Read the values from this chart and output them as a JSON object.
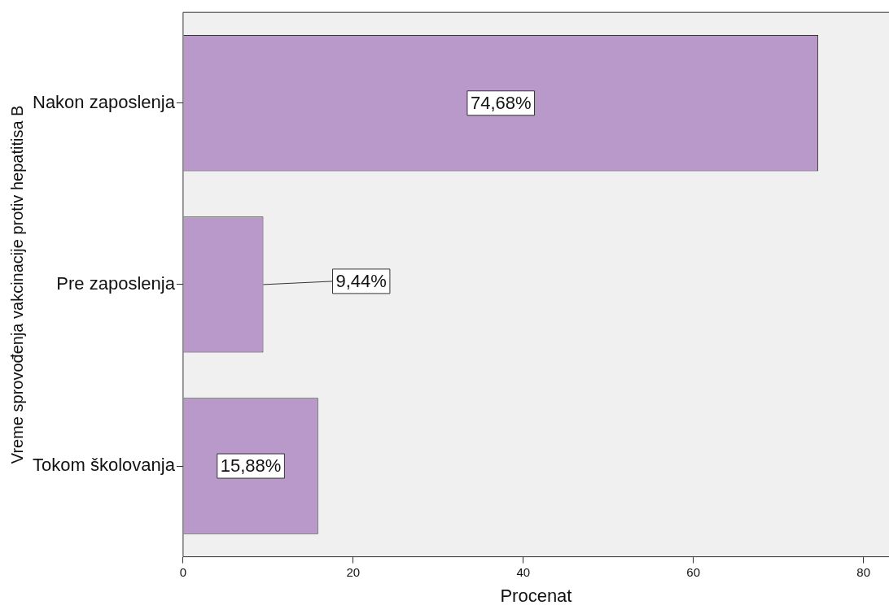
{
  "chart_data": {
    "type": "bar",
    "orientation": "horizontal",
    "xlabel": "Procenat",
    "ylabel": "Vreme sprovođenja vakcinacije protiv hepatitisa B",
    "categories": [
      "Nakon zaposlenja",
      "Pre zaposlenja",
      "Tokom školovanja"
    ],
    "values": [
      74.68,
      9.44,
      15.88
    ],
    "value_labels": [
      "74,68%",
      "9,44%",
      "15,88%"
    ],
    "color": "#b899c9",
    "xlim": [
      0,
      83
    ],
    "xticks": [
      0,
      20,
      40,
      60,
      80
    ],
    "grid": false,
    "legend": false
  }
}
